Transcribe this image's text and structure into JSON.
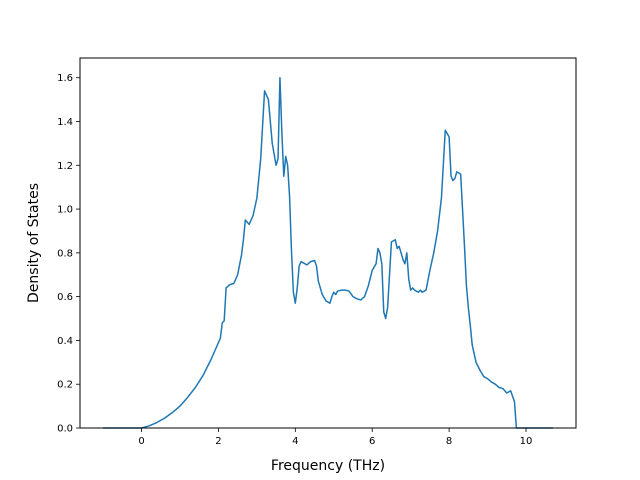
{
  "chart_data": {
    "type": "line",
    "title": "",
    "xlabel": "Frequency (THz)",
    "ylabel": "Density of States",
    "xlim": [
      -1.6,
      11.3
    ],
    "ylim": [
      0,
      1.69
    ],
    "grid": false,
    "legend": "none",
    "x_ticks": [
      0,
      2,
      4,
      6,
      8,
      10
    ],
    "y_ticks": [
      0.0,
      0.2,
      0.4,
      0.6,
      0.8,
      1.0,
      1.2,
      1.4,
      1.6
    ],
    "x_tick_labels": [
      "0",
      "2",
      "4",
      "6",
      "8",
      "10"
    ],
    "y_tick_labels": [
      "0.0",
      "0.2",
      "0.4",
      "0.6",
      "0.8",
      "1.0",
      "1.2",
      "1.4",
      "1.6"
    ],
    "line_color": "#1f77b4",
    "series": [
      {
        "x": [
          -1.0,
          -0.5,
          0.0,
          0.2,
          0.4,
          0.6,
          0.8,
          1.0,
          1.2,
          1.4,
          1.6,
          1.8,
          1.95,
          2.05,
          2.1,
          2.15,
          2.2,
          2.3,
          2.4,
          2.5,
          2.6,
          2.65,
          2.7,
          2.8,
          2.9,
          3.0,
          3.05,
          3.1,
          3.2,
          3.3,
          3.4,
          3.5,
          3.55,
          3.6,
          3.65,
          3.7,
          3.75,
          3.8,
          3.85,
          3.9,
          3.95,
          4.0,
          4.05,
          4.1,
          4.15,
          4.2,
          4.3,
          4.4,
          4.5,
          4.55,
          4.6,
          4.7,
          4.8,
          4.9,
          4.95,
          5.0,
          5.05,
          5.1,
          5.2,
          5.3,
          5.4,
          5.5,
          5.6,
          5.7,
          5.8,
          5.9,
          6.0,
          6.1,
          6.15,
          6.2,
          6.25,
          6.3,
          6.35,
          6.4,
          6.5,
          6.6,
          6.65,
          6.7,
          6.75,
          6.8,
          6.85,
          6.9,
          6.95,
          7.0,
          7.05,
          7.1,
          7.15,
          7.2,
          7.25,
          7.3,
          7.35,
          7.4,
          7.5,
          7.6,
          7.7,
          7.8,
          7.9,
          8.0,
          8.05,
          8.1,
          8.15,
          8.2,
          8.3,
          8.4,
          8.45,
          8.5,
          8.55,
          8.6,
          8.7,
          8.8,
          8.9,
          9.0,
          9.1,
          9.2,
          9.3,
          9.4,
          9.5,
          9.6,
          9.7,
          9.75,
          9.8,
          10.0,
          10.7
        ],
        "y": [
          0.0,
          0.0,
          0.0,
          0.01,
          0.025,
          0.045,
          0.07,
          0.1,
          0.14,
          0.185,
          0.24,
          0.31,
          0.37,
          0.41,
          0.48,
          0.49,
          0.64,
          0.655,
          0.66,
          0.7,
          0.79,
          0.86,
          0.95,
          0.93,
          0.97,
          1.05,
          1.14,
          1.23,
          1.54,
          1.5,
          1.3,
          1.2,
          1.23,
          1.6,
          1.35,
          1.15,
          1.24,
          1.2,
          1.06,
          0.81,
          0.62,
          0.57,
          0.64,
          0.74,
          0.76,
          0.755,
          0.745,
          0.76,
          0.765,
          0.74,
          0.67,
          0.61,
          0.58,
          0.57,
          0.6,
          0.62,
          0.61,
          0.625,
          0.63,
          0.63,
          0.625,
          0.6,
          0.59,
          0.585,
          0.6,
          0.65,
          0.72,
          0.75,
          0.82,
          0.8,
          0.75,
          0.53,
          0.5,
          0.55,
          0.85,
          0.86,
          0.82,
          0.83,
          0.8,
          0.77,
          0.75,
          0.8,
          0.68,
          0.63,
          0.64,
          0.63,
          0.625,
          0.62,
          0.63,
          0.62,
          0.625,
          0.63,
          0.72,
          0.8,
          0.9,
          1.05,
          1.36,
          1.33,
          1.15,
          1.13,
          1.14,
          1.17,
          1.16,
          0.83,
          0.65,
          0.55,
          0.47,
          0.38,
          0.3,
          0.265,
          0.235,
          0.225,
          0.21,
          0.2,
          0.185,
          0.18,
          0.16,
          0.17,
          0.12,
          0.0,
          0.0,
          0.0,
          0.0
        ]
      }
    ]
  }
}
